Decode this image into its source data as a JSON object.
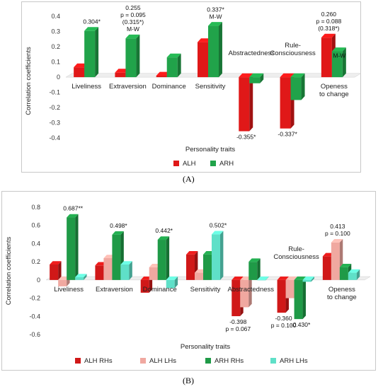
{
  "chart_data": [
    {
      "panel": "(A)",
      "type": "bar",
      "categories": [
        "Liveliness",
        "Extraversion",
        "Dominance",
        "Sensitivity",
        "Abstractedness",
        "Rule-\nConsciousness",
        "Openess\nto change"
      ],
      "series": [
        {
          "name": "ALH",
          "color": "#e01818",
          "values": [
            0.065,
            0.03,
            0.01,
            0.23,
            -0.355,
            -0.337,
            0.26
          ]
        },
        {
          "name": "ARH",
          "color": "#21a34a",
          "values": [
            0.304,
            0.255,
            0.13,
            0.337,
            -0.04,
            -0.15,
            0.17
          ]
        }
      ],
      "annotations": [
        {
          "cat": 0,
          "series": 1,
          "lines": [
            "0.304*"
          ],
          "color": "#0e8a6e"
        },
        {
          "cat": 1,
          "series": 1,
          "lines": [
            "0.255",
            "p = 0.095",
            "(0.315*)",
            "M-W"
          ],
          "color": "#111"
        },
        {
          "cat": 3,
          "series": 1,
          "lines": [
            "0.337*",
            "M-W"
          ],
          "color": "#111"
        },
        {
          "cat": 4,
          "series": 0,
          "lines": [
            "-0.355*"
          ],
          "color": "#111",
          "below": true
        },
        {
          "cat": 5,
          "series": 0,
          "lines": [
            "-0.337*"
          ],
          "color": "#c0146b",
          "below": true
        },
        {
          "cat": 6,
          "series": 0,
          "lines": [
            "0.260",
            "p = 0.088",
            "(0.318*)"
          ],
          "color": "#111"
        },
        {
          "cat": 6,
          "series": 1,
          "lines": [
            "M-W"
          ],
          "color": "#111",
          "inside": true
        }
      ],
      "ylabel": "Correlation coefficients",
      "xlabel": "Personality traits",
      "ylim": [
        -0.45,
        0.4
      ],
      "yticks": [
        "0.4",
        "0.3",
        "0.2",
        "0.1",
        "0",
        "-0.1",
        "-0.2",
        "-0.3",
        "-0.4"
      ],
      "legend": [
        "ALH",
        "ARH"
      ],
      "legend_position": "bottom"
    },
    {
      "panel": "(B)",
      "type": "bar",
      "categories": [
        "Liveliness",
        "Extraversion",
        "Dominance",
        "Sensitivity",
        "Abstractedness",
        "Rule-\nConsciousness",
        "Openess\nto change"
      ],
      "series": [
        {
          "name": "ALH RHs",
          "color": "#d01818",
          "values": [
            0.17,
            0.16,
            -0.14,
            0.28,
            -0.398,
            -0.36,
            0.26
          ]
        },
        {
          "name": "ALH LHs",
          "color": "#f0a8a0",
          "values": [
            -0.07,
            0.24,
            0.14,
            0.08,
            -0.3,
            -0.2,
            0.413
          ]
        },
        {
          "name": "ARH RHs",
          "color": "#1f9a47",
          "values": [
            0.687,
            0.498,
            0.442,
            0.28,
            0.2,
            -0.43,
            0.14
          ]
        },
        {
          "name": "ARH LHs",
          "color": "#5fe0c8",
          "values": [
            0.03,
            0.17,
            -0.09,
            0.502,
            0.0,
            -0.02,
            0.08
          ]
        }
      ],
      "annotations": [
        {
          "cat": 0,
          "series": 2,
          "lines": [
            "0.687**"
          ],
          "color": "#111"
        },
        {
          "cat": 1,
          "series": 2,
          "lines": [
            "0.498*"
          ],
          "color": "#0e8a6e"
        },
        {
          "cat": 2,
          "series": 2,
          "lines": [
            "0.442*"
          ],
          "color": "#111"
        },
        {
          "cat": 3,
          "series": 3,
          "lines": [
            "0.502*"
          ],
          "color": "#0e8a6e"
        },
        {
          "cat": 4,
          "series": 0,
          "lines": [
            "-0.398",
            "p = 0.067"
          ],
          "color": "#111",
          "below": true
        },
        {
          "cat": 5,
          "series": 0,
          "lines": [
            "-0.360",
            "p = 0.100"
          ],
          "color": "#111",
          "below": true,
          "red_first": true
        },
        {
          "cat": 5,
          "series": 2,
          "lines": [
            "-0.430*"
          ],
          "color": "#0e8a6e",
          "below": true
        },
        {
          "cat": 6,
          "series": 1,
          "lines": [
            "0.413",
            "p = 0.100"
          ],
          "color": "#111"
        }
      ],
      "ylabel": "Correlation coefficients",
      "xlabel": "Personality traits",
      "ylim": [
        -0.6,
        0.8
      ],
      "yticks": [
        "0.8",
        "0.6",
        "0.4",
        "0.2",
        "0",
        "-0.2",
        "-0.4",
        "-0.6"
      ],
      "legend": [
        "ALH RHs",
        "ALH LHs",
        "ARH RHs",
        "ARH LHs"
      ],
      "legend_position": "bottom"
    }
  ],
  "panel_labels": {
    "a": "(A)",
    "b": "(B)"
  }
}
